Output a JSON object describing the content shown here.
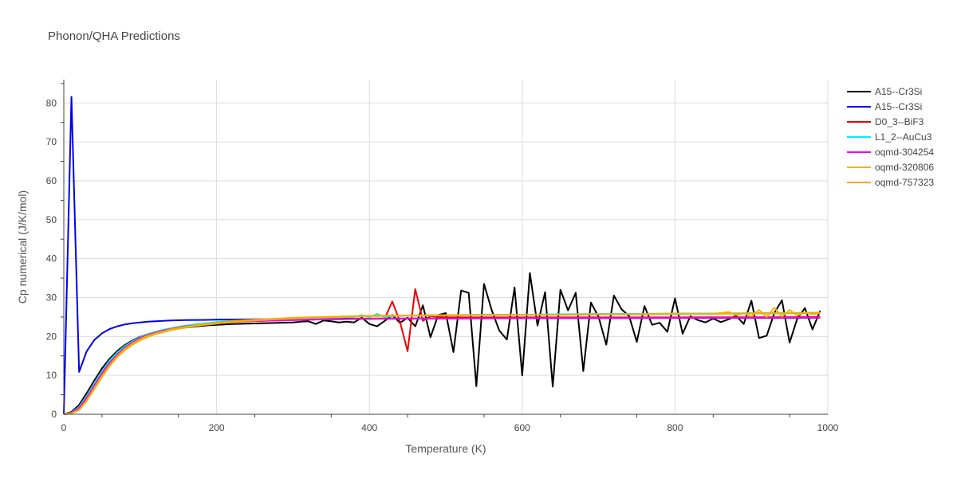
{
  "chart_data": {
    "type": "line",
    "title": "Phonon/QHA Predictions",
    "xlabel": "Temperature (K)",
    "ylabel": "Cp numerical (J/K/mol)",
    "xlim": [
      0,
      1000
    ],
    "ylim": [
      0,
      86
    ],
    "xticks": [
      0,
      200,
      400,
      600,
      800,
      1000
    ],
    "yticks": [
      0,
      10,
      20,
      30,
      40,
      50,
      60,
      70,
      80
    ],
    "grid": true,
    "legend_position": "top-right",
    "series": [
      {
        "name": "A15--Cr3Si",
        "color": "#000000",
        "x": [
          0,
          10,
          20,
          30,
          40,
          50,
          60,
          70,
          80,
          90,
          100,
          110,
          120,
          130,
          140,
          150,
          160,
          170,
          180,
          190,
          200,
          220,
          240,
          260,
          280,
          300,
          310,
          320,
          330,
          340,
          350,
          360,
          370,
          380,
          390,
          400,
          410,
          420,
          430,
          440,
          450,
          460,
          470,
          480,
          490,
          500,
          510,
          520,
          530,
          540,
          550,
          560,
          570,
          580,
          590,
          600,
          610,
          620,
          630,
          640,
          650,
          660,
          670,
          680,
          690,
          700,
          710,
          720,
          730,
          740,
          750,
          760,
          770,
          780,
          790,
          800,
          810,
          820,
          830,
          840,
          850,
          860,
          870,
          880,
          890,
          900,
          910,
          920,
          930,
          940,
          950,
          960,
          970,
          980,
          990
        ],
        "y": [
          0,
          0.6,
          2.4,
          5.4,
          8.7,
          11.8,
          14.3,
          16.3,
          17.8,
          19.0,
          19.9,
          20.6,
          21.1,
          21.5,
          21.8,
          22.1,
          22.3,
          22.5,
          22.7,
          22.9,
          23.0,
          23.2,
          23.3,
          23.4,
          23.5,
          23.6,
          23.8,
          23.9,
          23.2,
          24.1,
          23.9,
          23.6,
          23.8,
          23.6,
          24.8,
          23.2,
          22.6,
          24.0,
          25.5,
          23.5,
          24.8,
          22.6,
          28.0,
          19.8,
          25.5,
          26.0,
          16.0,
          31.8,
          31.2,
          7.2,
          33.5,
          26.8,
          21.5,
          19.2,
          32.6,
          10.0,
          36.3,
          22.8,
          31.4,
          7.1,
          32.0,
          26.7,
          31.2,
          11.1,
          28.7,
          25.0,
          17.9,
          30.5,
          27.0,
          25.2,
          18.6,
          27.8,
          23.0,
          23.5,
          21.2,
          29.8,
          20.7,
          25.2,
          24.2,
          23.6,
          24.6,
          23.7,
          24.4,
          25.3,
          23.2,
          29.2,
          19.6,
          20.2,
          26.0,
          29.3,
          18.4,
          24.6,
          27.3,
          21.8,
          26.6
        ]
      },
      {
        "name": "A15--Cr3Si",
        "color": "#0000ee",
        "x": [
          0,
          10,
          20,
          30,
          40,
          50,
          60,
          70,
          80,
          90,
          100,
          110,
          120,
          140,
          160,
          180,
          200,
          250,
          300,
          400,
          500,
          600,
          700,
          800,
          900,
          990
        ],
        "y": [
          0,
          81.6,
          10.9,
          16.2,
          19.1,
          20.8,
          21.9,
          22.6,
          23.1,
          23.4,
          23.6,
          23.8,
          23.9,
          24.1,
          24.2,
          24.25,
          24.3,
          24.4,
          24.5,
          24.6,
          24.65,
          24.7,
          24.7,
          24.75,
          24.75,
          24.8
        ]
      },
      {
        "name": "D0_3--BiF3",
        "color": "#ee0000",
        "x": [
          0,
          10,
          20,
          30,
          40,
          50,
          60,
          70,
          80,
          90,
          100,
          110,
          120,
          130,
          140,
          150,
          160,
          170,
          180,
          190,
          200,
          220,
          240,
          260,
          280,
          300,
          320,
          340,
          360,
          380,
          400,
          410,
          420,
          430,
          440,
          450,
          460,
          470,
          480,
          500,
          550,
          600,
          650,
          700,
          800,
          900,
          990
        ],
        "y": [
          0,
          0.3,
          1.5,
          4.0,
          7.2,
          10.3,
          13.0,
          15.2,
          16.9,
          18.3,
          19.4,
          20.2,
          20.9,
          21.4,
          21.8,
          22.2,
          22.5,
          22.8,
          23.0,
          23.2,
          23.4,
          23.7,
          23.9,
          24.0,
          24.1,
          24.2,
          24.3,
          24.4,
          24.4,
          24.5,
          24.5,
          24.6,
          24.6,
          29.0,
          23.8,
          16.2,
          32.2,
          24.0,
          25.2,
          24.9,
          24.9,
          24.9,
          24.9,
          24.9,
          24.9,
          24.95,
          25.0
        ]
      },
      {
        "name": "L1_2--AuCu3",
        "color": "#00eeee",
        "x": [
          0,
          10,
          20,
          30,
          40,
          50,
          60,
          70,
          80,
          90,
          100,
          110,
          120,
          130,
          140,
          150,
          160,
          170,
          180,
          190,
          200,
          220,
          240,
          260,
          280,
          300,
          320,
          340,
          360,
          380,
          390,
          400,
          410,
          420,
          430,
          440,
          460,
          480,
          500,
          550,
          600,
          650,
          700,
          750,
          800,
          850,
          900,
          950,
          990
        ],
        "y": [
          0,
          0.4,
          1.9,
          4.7,
          8.0,
          11.1,
          13.8,
          15.9,
          17.5,
          18.8,
          19.8,
          20.6,
          21.2,
          21.7,
          22.1,
          22.5,
          22.8,
          23.1,
          23.3,
          23.5,
          23.7,
          24.0,
          24.2,
          24.4,
          24.5,
          24.6,
          24.7,
          24.8,
          24.9,
          25.0,
          25.5,
          24.9,
          25.8,
          25.0,
          25.2,
          25.3,
          25.4,
          25.5,
          25.5,
          25.6,
          25.6,
          25.7,
          25.8,
          25.8,
          25.9,
          25.9,
          26.0,
          26.0,
          26.1
        ]
      },
      {
        "name": "oqmd-304254",
        "color": "#ee00ee",
        "x": [
          0,
          10,
          20,
          30,
          40,
          50,
          60,
          70,
          80,
          90,
          100,
          110,
          120,
          130,
          140,
          150,
          160,
          170,
          180,
          190,
          200,
          220,
          240,
          260,
          280,
          300,
          350,
          400,
          500,
          600,
          700,
          800,
          900,
          990
        ],
        "y": [
          0,
          0.3,
          1.6,
          4.2,
          7.4,
          10.5,
          13.2,
          15.4,
          17.1,
          18.5,
          19.6,
          20.4,
          21.0,
          21.5,
          21.9,
          22.3,
          22.6,
          22.8,
          23.0,
          23.2,
          23.4,
          23.7,
          23.9,
          24.0,
          24.1,
          24.2,
          24.4,
          24.5,
          24.6,
          24.7,
          24.75,
          24.8,
          24.8,
          24.85
        ]
      },
      {
        "name": "oqmd-320806",
        "color": "#eeb400",
        "x": [
          0,
          10,
          20,
          30,
          40,
          50,
          60,
          70,
          80,
          90,
          100,
          110,
          120,
          130,
          140,
          150,
          160,
          170,
          180,
          190,
          200,
          220,
          240,
          260,
          280,
          300,
          320,
          340,
          360,
          380,
          400,
          450,
          500,
          550,
          600,
          650,
          700,
          750,
          800,
          850,
          870,
          880,
          890,
          900,
          910,
          920,
          930,
          940,
          950,
          960,
          970,
          980,
          990
        ],
        "y": [
          0,
          0.2,
          1.1,
          3.4,
          6.5,
          9.6,
          12.4,
          14.7,
          16.5,
          17.9,
          19.0,
          19.9,
          20.6,
          21.1,
          21.6,
          22.0,
          22.3,
          22.6,
          22.9,
          23.1,
          23.3,
          23.7,
          24.0,
          24.2,
          24.4,
          24.6,
          24.8,
          24.9,
          25.0,
          25.1,
          25.2,
          25.3,
          25.4,
          25.5,
          25.6,
          25.6,
          25.7,
          25.7,
          25.8,
          25.8,
          26.3,
          25.5,
          26.0,
          25.2,
          26.8,
          25.0,
          27.4,
          25.1,
          26.8,
          25.4,
          26.2,
          25.7,
          26.0
        ]
      },
      {
        "name": "oqmd-757323",
        "color": "#ffa500",
        "x": [
          0,
          10,
          20,
          30,
          40,
          50,
          60,
          70,
          80,
          90,
          100,
          110,
          120,
          130,
          140,
          150,
          160,
          170,
          180,
          190,
          200,
          220,
          240,
          260,
          280,
          300,
          320,
          340,
          360,
          380,
          400,
          450,
          500,
          550,
          600,
          650,
          700,
          750,
          800,
          850,
          900,
          950,
          990
        ],
        "y": [
          0,
          0.2,
          1.2,
          3.6,
          6.8,
          9.9,
          12.7,
          15.0,
          16.8,
          18.2,
          19.3,
          20.2,
          20.8,
          21.3,
          21.8,
          22.2,
          22.5,
          22.8,
          23.1,
          23.3,
          23.5,
          23.9,
          24.2,
          24.4,
          24.6,
          24.8,
          24.9,
          25.0,
          25.1,
          25.2,
          25.3,
          25.4,
          25.5,
          25.5,
          25.6,
          25.6,
          25.7,
          25.7,
          25.8,
          25.8,
          25.9,
          25.9,
          26.0
        ]
      }
    ]
  }
}
